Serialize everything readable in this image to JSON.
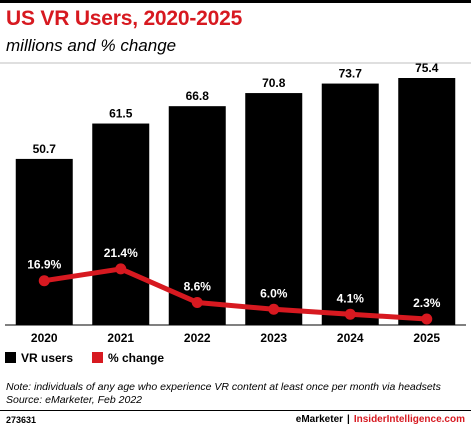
{
  "header": {
    "title": "US VR Users, 2020-2025",
    "subtitle": "millions and % change"
  },
  "footnote": {
    "note": "Note: individuals of any age who experience VR content at least once per month via headsets",
    "source": "Source: eMarketer, Feb 2022"
  },
  "footer": {
    "chart_id": "273631",
    "brand": "eMarketer",
    "separator": "|",
    "site": "InsiderIntelligence.com"
  },
  "colors": {
    "bar": "#000000",
    "line": "#d71920",
    "accent": "#d71920"
  },
  "chart_data": {
    "type": "bar",
    "title": "US VR Users, 2020-2025",
    "subtitle": "millions and % change",
    "categories": [
      "2020",
      "2021",
      "2022",
      "2023",
      "2024",
      "2025"
    ],
    "series": [
      {
        "name": "VR users",
        "type": "bar",
        "values": [
          50.7,
          61.5,
          66.8,
          70.8,
          73.7,
          75.4
        ],
        "labels": [
          "50.7",
          "61.5",
          "66.8",
          "70.8",
          "73.7",
          "75.4"
        ]
      },
      {
        "name": "% change",
        "type": "line",
        "values": [
          16.9,
          21.4,
          8.6,
          6.0,
          4.1,
          2.3
        ],
        "labels": [
          "16.9%",
          "21.4%",
          "8.6%",
          "6.0%",
          "4.1%",
          "2.3%"
        ]
      }
    ],
    "bar_ylim": [
      0,
      80
    ],
    "line_ylim": [
      0,
      80
    ],
    "grid": false,
    "legend": "bottom-left"
  }
}
